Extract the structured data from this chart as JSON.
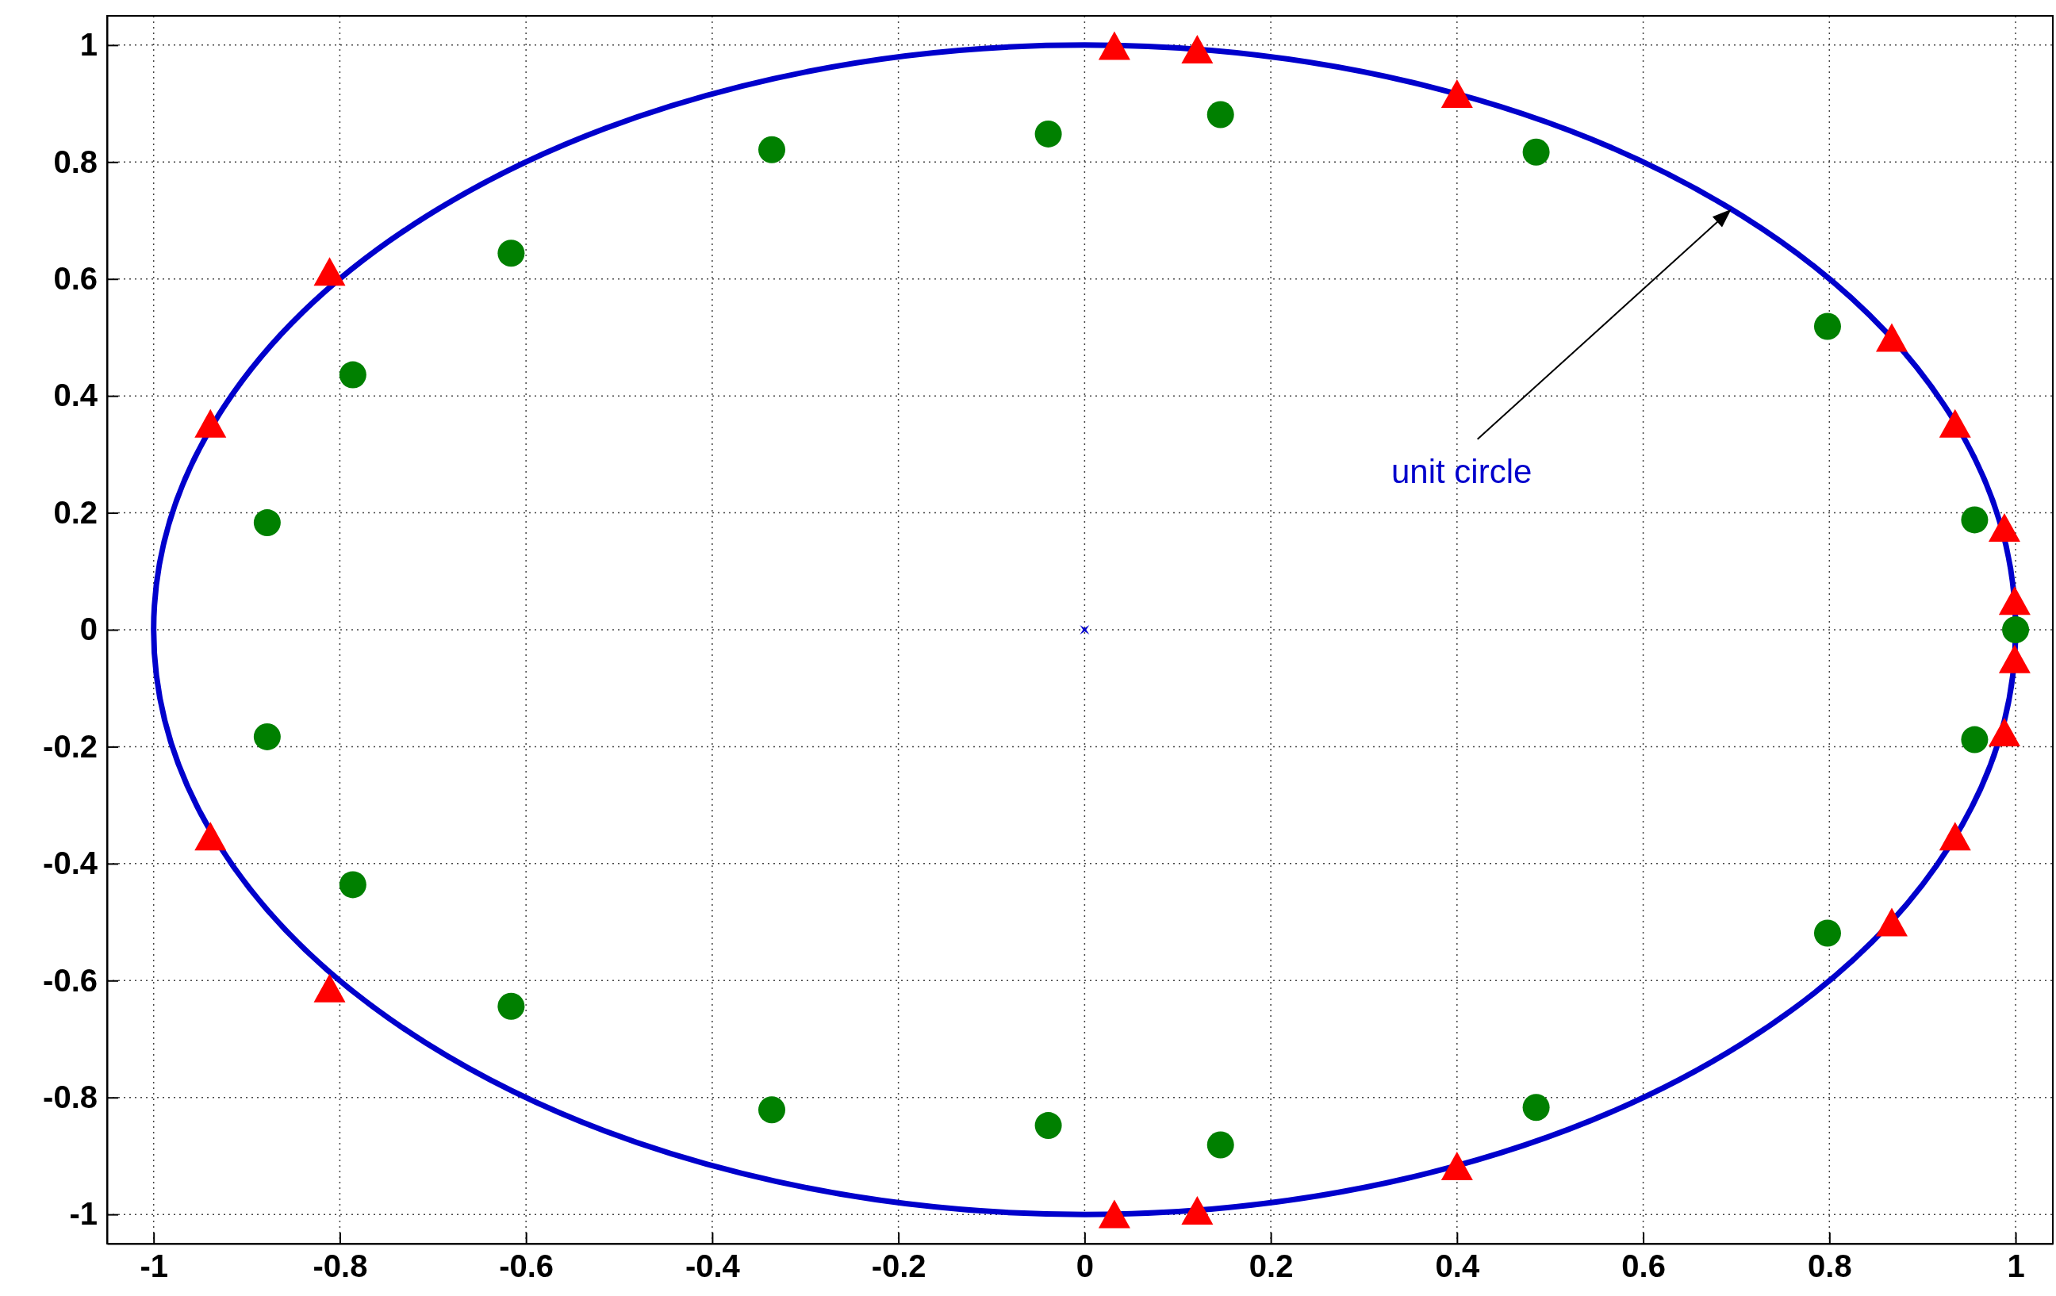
{
  "chart_data": {
    "type": "scatter",
    "xlim": [
      -1.05,
      1.04
    ],
    "ylim": [
      -1.05,
      1.05
    ],
    "xticks": [
      -1,
      -0.8,
      -0.6,
      -0.4,
      -0.2,
      0,
      0.2,
      0.4,
      0.6,
      0.8,
      1
    ],
    "yticks": [
      -1,
      -0.8,
      -0.6,
      -0.4,
      -0.2,
      0,
      0.2,
      0.4,
      0.6,
      0.8,
      1
    ],
    "grid": true,
    "annotations": [
      "unit circle"
    ],
    "series": [
      {
        "color": "#0000cc",
        "marker": "cross",
        "x": [
          0
        ],
        "values": [
          0
        ]
      },
      {
        "color": "#008000",
        "marker": "circle",
        "x": [
          -0.336,
          -0.039,
          0.146,
          0.485,
          0.798,
          0.956,
          1.0,
          -0.616,
          -0.786,
          -0.878,
          -0.336,
          -0.039,
          0.146,
          0.485,
          0.798,
          0.956,
          -0.616,
          -0.786,
          -0.878
        ],
        "values": [
          0.821,
          0.848,
          0.881,
          0.817,
          0.519,
          0.188,
          0,
          0.644,
          0.436,
          0.183,
          -0.821,
          -0.848,
          -0.881,
          -0.817,
          -0.519,
          -0.188,
          -0.644,
          -0.436,
          -0.183
        ]
      },
      {
        "color": "#ff0000",
        "marker": "triangle",
        "x": [
          0.032,
          0.121,
          0.4,
          0.867,
          0.935,
          0.988,
          0.999,
          -0.811,
          -0.939,
          0.032,
          0.121,
          0.4,
          0.867,
          0.935,
          0.988,
          0.999,
          -0.811,
          -0.939
        ],
        "values": [
          0.999,
          0.993,
          0.917,
          0.5,
          0.353,
          0.175,
          0.05,
          0.613,
          0.353,
          -0.999,
          -0.993,
          -0.917,
          -0.5,
          -0.353,
          -0.175,
          -0.05,
          -0.613,
          -0.353
        ]
      }
    ]
  }
}
